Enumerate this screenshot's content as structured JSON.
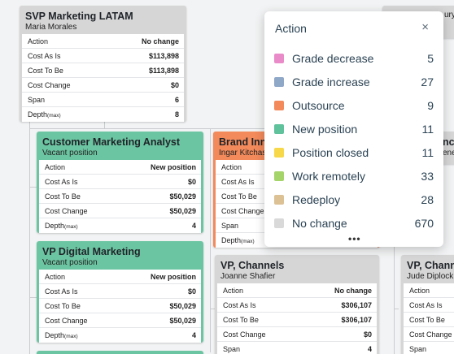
{
  "cards": {
    "svp": {
      "title": "SVP Marketing LATAM",
      "subtitle": "Maria Morales",
      "rows": [
        {
          "k": "Action",
          "v": "No change"
        },
        {
          "k": "Cost As Is",
          "v": "$113,898"
        },
        {
          "k": "Cost To Be",
          "v": "$113,898"
        },
        {
          "k": "Cost Change",
          "v": "$0"
        },
        {
          "k": "Span",
          "v": "6"
        },
        {
          "k": "Depth",
          "sub": "(max)",
          "v": "8"
        }
      ]
    },
    "analyst": {
      "title": "Customer Marketing Analyst",
      "subtitle": "Vacant position",
      "rows": [
        {
          "k": "Action",
          "v": "New position"
        },
        {
          "k": "Cost As Is",
          "v": "$0"
        },
        {
          "k": "Cost To Be",
          "v": "$50,029"
        },
        {
          "k": "Cost Change",
          "v": "$50,029"
        },
        {
          "k": "Depth",
          "sub": "(max)",
          "v": "4"
        }
      ]
    },
    "digital": {
      "title": "VP Digital Marketing",
      "subtitle": "Vacant position",
      "rows": [
        {
          "k": "Action",
          "v": "New position"
        },
        {
          "k": "Cost As Is",
          "v": "$0"
        },
        {
          "k": "Cost To Be",
          "v": "$50,029"
        },
        {
          "k": "Cost Change",
          "v": "$50,029"
        },
        {
          "k": "Depth",
          "sub": "(max)",
          "v": "4"
        }
      ]
    },
    "brand": {
      "title": "Brand Inn",
      "subtitle": "Ingar Kitchas",
      "rows": [
        {
          "k": "Action",
          "v": ""
        },
        {
          "k": "Cost As Is",
          "v": ""
        },
        {
          "k": "Cost To Be",
          "v": ""
        },
        {
          "k": "Cost Change",
          "v": ""
        },
        {
          "k": "Span",
          "v": ""
        },
        {
          "k": "Depth",
          "sub": "(max)",
          "v": ""
        }
      ],
      "ellipsis": "•••"
    },
    "channels": {
      "title": "VP, Channels",
      "subtitle": "Joanne Shafier",
      "rows": [
        {
          "k": "Action",
          "v": "No change"
        },
        {
          "k": "Cost As Is",
          "v": "$306,107"
        },
        {
          "k": "Cost To Be",
          "v": "$306,107"
        },
        {
          "k": "Cost Change",
          "v": "$0"
        },
        {
          "k": "Span",
          "v": "4"
        }
      ]
    },
    "channels2": {
      "title": "VP, Channe",
      "subtitle": "Jude Diplock",
      "rows": [
        {
          "k": "Action",
          "v": ""
        },
        {
          "k": "Cost As Is",
          "v": ""
        },
        {
          "k": "Cost To Be",
          "v": ""
        },
        {
          "k": "Cost Change",
          "v": ""
        },
        {
          "k": "Span",
          "v": ""
        }
      ]
    },
    "partial_top_right": {
      "title": "",
      "subtitle": "ury"
    },
    "partial_mid_right": {
      "title": "nc",
      "subtitle": "ene"
    }
  },
  "popup": {
    "title": "Action",
    "close": "×",
    "items": [
      {
        "label": "Grade decrease",
        "count": "5",
        "color": "#e98bc8"
      },
      {
        "label": "Grade increase",
        "count": "27",
        "color": "#8fa8c8"
      },
      {
        "label": "Outsource",
        "count": "9",
        "color": "#f28a5b"
      },
      {
        "label": "New position",
        "count": "11",
        "color": "#5fc29c"
      },
      {
        "label": "Position closed",
        "count": "11",
        "color": "#f7d84a"
      },
      {
        "label": "Work remotely",
        "count": "33",
        "color": "#a5d46a"
      },
      {
        "label": "Redeploy",
        "count": "28",
        "color": "#dcc194"
      },
      {
        "label": "No change",
        "count": "670",
        "color": "#d9d9d9"
      }
    ]
  }
}
